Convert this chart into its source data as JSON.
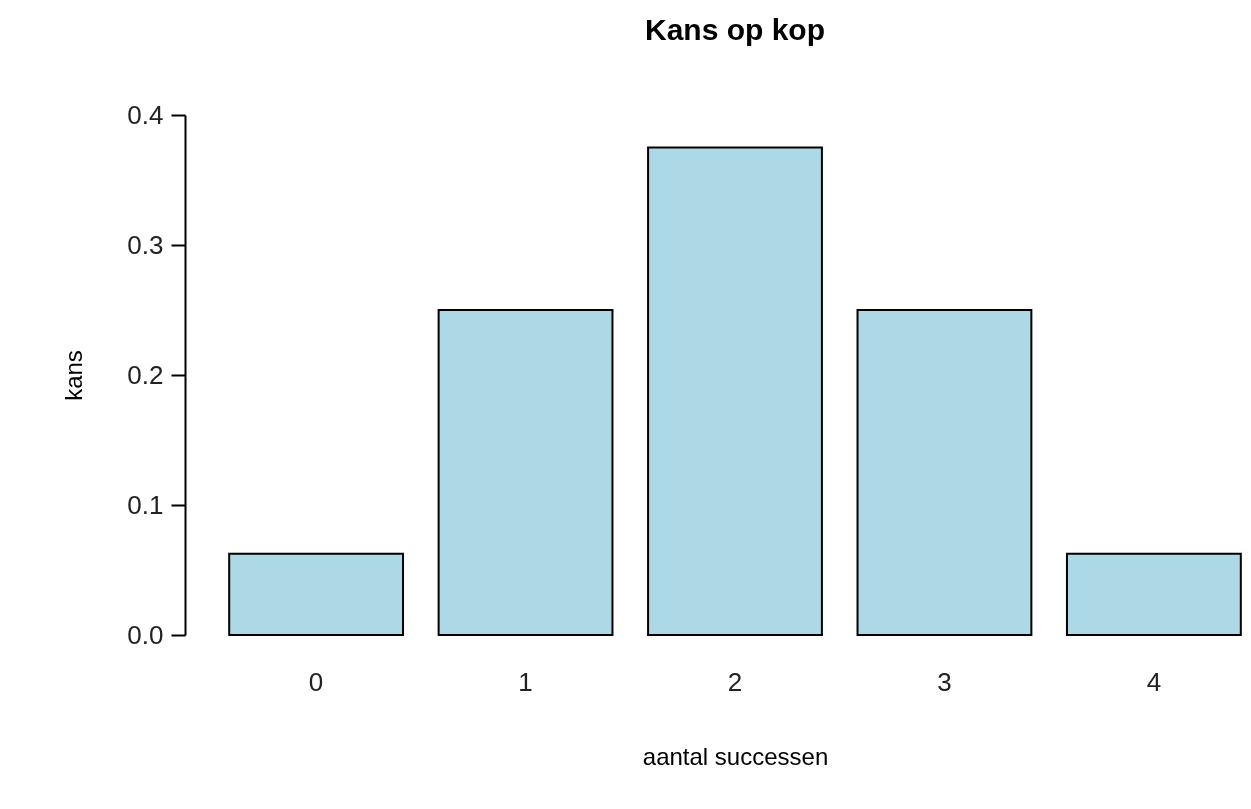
{
  "chart_data": {
    "type": "bar",
    "title": "Kans op kop",
    "xlabel": "aantal successen",
    "ylabel": "kans",
    "categories": [
      "0",
      "1",
      "2",
      "3",
      "4"
    ],
    "values": [
      0.0625,
      0.25,
      0.375,
      0.25,
      0.0625
    ],
    "color": "#add8e6",
    "ylim": [
      0,
      0.4
    ],
    "yticks": [
      {
        "value": 0,
        "label": "0.0"
      },
      {
        "value": 0.1,
        "label": "0.1"
      },
      {
        "value": 0.2,
        "label": "0.2"
      },
      {
        "value": 0.3,
        "label": "0.3"
      },
      {
        "value": 0.4,
        "label": "0.4"
      }
    ],
    "grid": false
  }
}
